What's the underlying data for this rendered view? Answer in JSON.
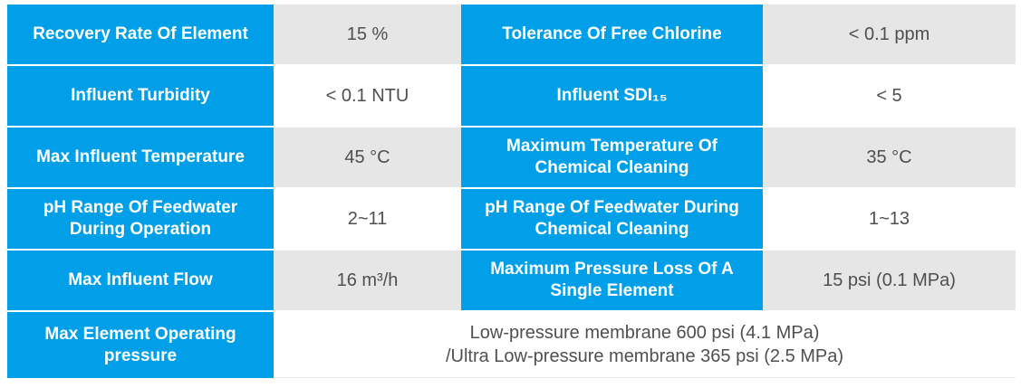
{
  "colors": {
    "header_blue": "#009FE8",
    "cell_gray": "#E6E6E6",
    "cell_white": "#FFFFFF",
    "label_text": "#FFFFFF",
    "value_text": "#4F4F52"
  },
  "table": {
    "rows": [
      {
        "label1": "Recovery Rate Of Element",
        "value1": "15 %",
        "label2": "Tolerance Of Free Chlorine",
        "value2": "< 0.1 ppm"
      },
      {
        "label1": "Influent Turbidity",
        "value1": "< 0.1 NTU",
        "label2": "Influent SDI₁₅",
        "value2": "< 5"
      },
      {
        "label1": "Max Influent Temperature",
        "value1": "45 °C",
        "label2": "Maximum Temperature Of Chemical Cleaning",
        "value2": "35 °C"
      },
      {
        "label1": "pH Range Of Feedwater During Operation",
        "value1": "2~11",
        "label2": "pH Range Of Feedwater During Chemical Cleaning",
        "value2": "1~13"
      },
      {
        "label1": "Max Influent Flow",
        "value1": "16 m³/h",
        "label2": "Maximum Pressure Loss Of A Single Element",
        "value2": "15 psi (0.1 MPa)"
      },
      {
        "label1": "Max Element Operating pressure",
        "value_line1": "Low-pressure membrane 600 psi (4.1 MPa)",
        "value_line2": "/Ultra Low-pressure membrane 365 psi (2.5 MPa)"
      }
    ]
  }
}
